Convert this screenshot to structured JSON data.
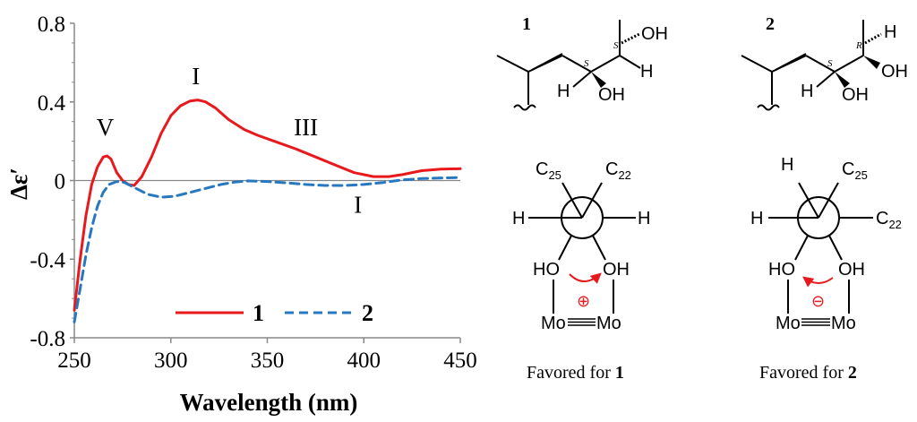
{
  "chart_data": {
    "type": "line",
    "xlabel": "Wavelength (nm)",
    "ylabel": "Δε′",
    "xlim": [
      250,
      450
    ],
    "ylim": [
      -0.8,
      0.8
    ],
    "x_ticks": [
      "250",
      "300",
      "350",
      "400",
      "450"
    ],
    "y_ticks": [
      "0.8",
      "0.4",
      "0",
      "-0.4",
      "-0.8"
    ],
    "grid": false,
    "legend_position": "bottom-center",
    "series": [
      {
        "name": "1",
        "style": "solid",
        "color": "#e8191c",
        "points": [
          [
            250,
            -0.66
          ],
          [
            253,
            -0.4
          ],
          [
            256,
            -0.18
          ],
          [
            259,
            -0.02
          ],
          [
            262,
            0.07
          ],
          [
            265,
            0.12
          ],
          [
            267,
            0.125
          ],
          [
            269,
            0.11
          ],
          [
            272,
            0.04
          ],
          [
            275,
            0.0
          ],
          [
            278,
            -0.02
          ],
          [
            281,
            -0.025
          ],
          [
            285,
            0.02
          ],
          [
            290,
            0.12
          ],
          [
            295,
            0.24
          ],
          [
            300,
            0.33
          ],
          [
            305,
            0.38
          ],
          [
            310,
            0.405
          ],
          [
            314,
            0.41
          ],
          [
            318,
            0.4
          ],
          [
            323,
            0.37
          ],
          [
            330,
            0.31
          ],
          [
            338,
            0.26
          ],
          [
            345,
            0.23
          ],
          [
            355,
            0.195
          ],
          [
            365,
            0.16
          ],
          [
            375,
            0.12
          ],
          [
            385,
            0.08
          ],
          [
            395,
            0.04
          ],
          [
            405,
            0.02
          ],
          [
            413,
            0.02
          ],
          [
            420,
            0.03
          ],
          [
            430,
            0.05
          ],
          [
            440,
            0.058
          ],
          [
            450,
            0.06
          ]
        ]
      },
      {
        "name": "2",
        "style": "dashed",
        "color": "#2878c0",
        "points": [
          [
            250,
            -0.72
          ],
          [
            253,
            -0.55
          ],
          [
            256,
            -0.38
          ],
          [
            259,
            -0.24
          ],
          [
            262,
            -0.13
          ],
          [
            265,
            -0.06
          ],
          [
            268,
            -0.02
          ],
          [
            272,
            -0.005
          ],
          [
            276,
            -0.01
          ],
          [
            282,
            -0.04
          ],
          [
            288,
            -0.07
          ],
          [
            295,
            -0.085
          ],
          [
            302,
            -0.08
          ],
          [
            310,
            -0.06
          ],
          [
            318,
            -0.04
          ],
          [
            326,
            -0.02
          ],
          [
            333,
            -0.008
          ],
          [
            340,
            -0.002
          ],
          [
            350,
            -0.005
          ],
          [
            360,
            -0.012
          ],
          [
            370,
            -0.02
          ],
          [
            380,
            -0.025
          ],
          [
            390,
            -0.025
          ],
          [
            400,
            -0.02
          ],
          [
            410,
            -0.01
          ],
          [
            420,
            0.003
          ],
          [
            430,
            0.01
          ],
          [
            440,
            0.013
          ],
          [
            450,
            0.015
          ]
        ]
      }
    ],
    "annotations": [
      {
        "text": "V",
        "x": 266,
        "y": 0.23,
        "color": "#000000"
      },
      {
        "text": "I",
        "x": 313,
        "y": 0.49,
        "color": "#000000"
      },
      {
        "text": "III",
        "x": 370,
        "y": 0.23,
        "color": "#000000"
      },
      {
        "text": "I",
        "x": 397,
        "y": -0.165,
        "color": "#000000"
      }
    ],
    "baseline_color": "#888888"
  },
  "schemes": {
    "compound_1": {
      "number": "1",
      "oh_top": "OH",
      "h_right": "H",
      "h_left": "H",
      "oh_bottom": "OH",
      "stereo_left": "S",
      "stereo_right": "S"
    },
    "compound_2": {
      "number": "2",
      "h_top": "H",
      "oh_right": "OH",
      "h_left": "H",
      "oh_bottom": "OH",
      "stereo_left": "S",
      "stereo_right": "R"
    },
    "newman_1": {
      "c25": "C",
      "c25_sub": "25",
      "c22": "C",
      "c22_sub": "22",
      "h_left": "H",
      "h_right": "H",
      "oh_left": "HO",
      "oh_right": "OH",
      "mo_left": "Mo",
      "mo_right": "Mo",
      "sign": "⊕",
      "caption_prefix": "Favored for ",
      "caption_number": "1"
    },
    "newman_2": {
      "h_top": "H",
      "c25": "C",
      "c25_sub": "25",
      "h_left": "H",
      "c22": "C",
      "c22_sub": "22",
      "oh_left": "HO",
      "oh_right": "OH",
      "mo_left": "Mo",
      "mo_right": "Mo",
      "sign": "⊖",
      "caption_prefix": "Favored for ",
      "caption_number": "2"
    },
    "accent_color": "#e8191c"
  }
}
